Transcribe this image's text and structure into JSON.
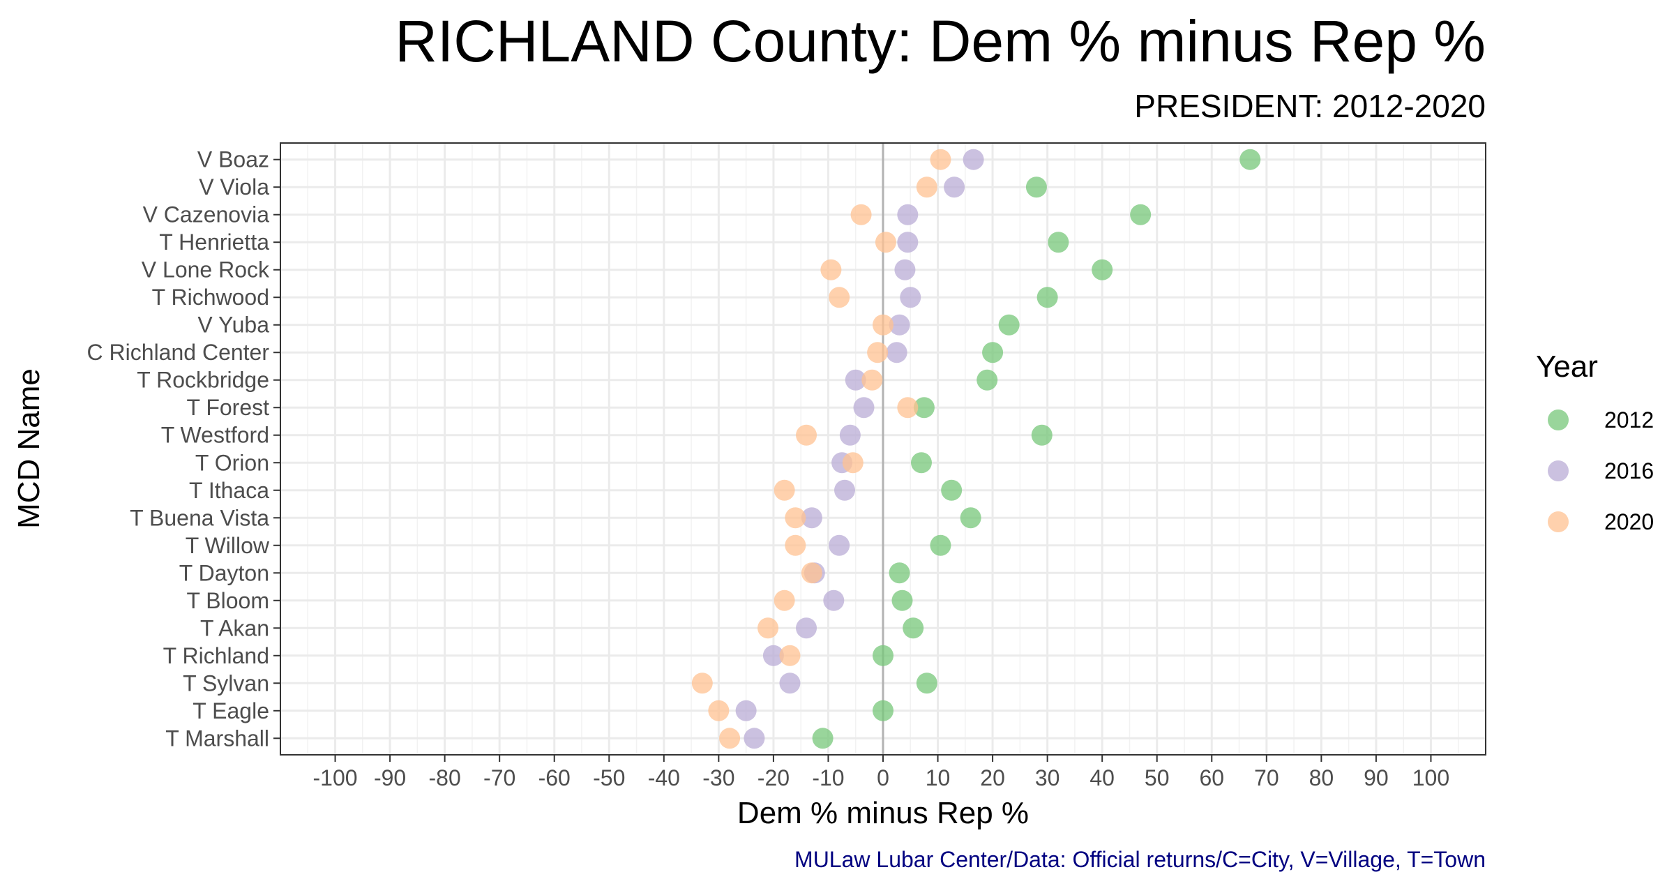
{
  "chart_data": {
    "type": "scatter",
    "title": "RICHLAND County: Dem % minus Rep %",
    "subtitle": "PRESIDENT: 2012-2020",
    "xlabel": "Dem % minus Rep %",
    "ylabel": "MCD Name",
    "caption": "MULaw Lubar Center/Data: Official returns/C=City, V=Village, T=Town",
    "xlim": [
      -110,
      110
    ],
    "xticks": [
      -100,
      -90,
      -80,
      -70,
      -60,
      -50,
      -40,
      -30,
      -20,
      -10,
      0,
      10,
      20,
      30,
      40,
      50,
      60,
      70,
      80,
      90,
      100
    ],
    "grid": true,
    "reference_line_x": 0,
    "legend": {
      "title": "Year",
      "position": "right"
    },
    "categories": [
      "V Boaz",
      "V Viola",
      "V Cazenovia",
      "T Henrietta",
      "V Lone Rock",
      "T Richwood",
      "V Yuba",
      "C Richland Center",
      "T Rockbridge",
      "T Forest",
      "T Westford",
      "T Orion",
      "T Ithaca",
      "T Buena Vista",
      "T Willow",
      "T Dayton",
      "T Bloom",
      "T Akan",
      "T Richland",
      "T Sylvan",
      "T Eagle",
      "T Marshall"
    ],
    "series": [
      {
        "name": "2012",
        "color": "#77c77a",
        "values": [
          67,
          28,
          47,
          32,
          40,
          30,
          23,
          20,
          19,
          7.5,
          29,
          7,
          12.5,
          16,
          10.5,
          3,
          3.5,
          5.5,
          0,
          8,
          0,
          -11
        ]
      },
      {
        "name": "2016",
        "color": "#b9acd6",
        "values": [
          16.5,
          13,
          4.5,
          4.5,
          4,
          5,
          3,
          2.5,
          -5,
          -3.5,
          -6,
          -7.5,
          -7,
          -13,
          -8,
          -12.5,
          -9,
          -14,
          -20,
          -17,
          -25,
          -23.5
        ]
      },
      {
        "name": "2020",
        "color": "#ffc291",
        "values": [
          10.5,
          8,
          -4,
          0.5,
          -9.5,
          -8,
          0,
          -1,
          -2,
          4.5,
          -14,
          -5.5,
          -18,
          -16,
          -16,
          -13,
          -18,
          -21,
          -17,
          -33,
          -30,
          -28
        ]
      }
    ]
  }
}
